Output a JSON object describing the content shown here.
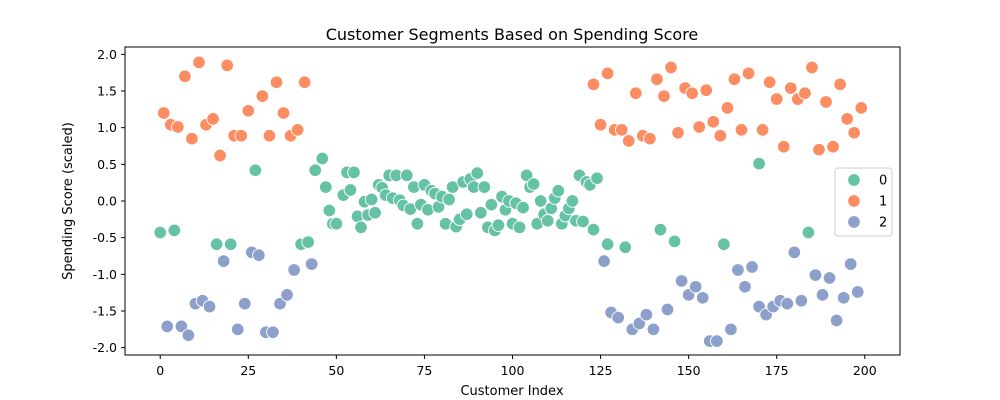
{
  "chart_data": {
    "type": "scatter",
    "title": "Customer Segments Based on Spending Score",
    "xlabel": "Customer Index",
    "ylabel": "Spending Score (scaled)",
    "xlim": [
      -10,
      210
    ],
    "ylim": [
      -2.1,
      2.1
    ],
    "xticks": [
      0,
      25,
      50,
      75,
      100,
      125,
      150,
      175,
      200
    ],
    "yticks": [
      -2.0,
      -1.5,
      -1.0,
      -0.5,
      0.0,
      0.5,
      1.0,
      1.5,
      2.0
    ],
    "grid": false,
    "legend": {
      "placement": "center-right",
      "entries": [
        "0",
        "1",
        "2"
      ]
    },
    "series": [
      {
        "name": "0",
        "color": "#66c2a5",
        "points": [
          [
            0,
            -0.43
          ],
          [
            4,
            -0.4
          ],
          [
            16,
            -0.59
          ],
          [
            20,
            -0.59
          ],
          [
            27,
            0.42
          ],
          [
            40,
            -0.59
          ],
          [
            42,
            -0.56
          ],
          [
            44,
            0.42
          ],
          [
            46,
            0.58
          ],
          [
            47,
            0.19
          ],
          [
            48,
            -0.13
          ],
          [
            49,
            -0.31
          ],
          [
            50,
            -0.31
          ],
          [
            52,
            0.08
          ],
          [
            53,
            0.39
          ],
          [
            54,
            0.15
          ],
          [
            55,
            0.39
          ],
          [
            56,
            -0.21
          ],
          [
            57,
            -0.36
          ],
          [
            58,
            -0.01
          ],
          [
            59,
            -0.19
          ],
          [
            60,
            0.02
          ],
          [
            61,
            -0.16
          ],
          [
            62,
            0.22
          ],
          [
            63,
            0.18
          ],
          [
            64,
            0.08
          ],
          [
            65,
            0.35
          ],
          [
            66,
            0.04
          ],
          [
            67,
            0.35
          ],
          [
            68,
            0.01
          ],
          [
            69,
            -0.06
          ],
          [
            70,
            0.35
          ],
          [
            71,
            -0.11
          ],
          [
            72,
            0.19
          ],
          [
            73,
            -0.31
          ],
          [
            74,
            -0.05
          ],
          [
            75,
            0.22
          ],
          [
            76,
            -0.12
          ],
          [
            77,
            0.14
          ],
          [
            78,
            0.1
          ],
          [
            79,
            -0.08
          ],
          [
            80,
            0.06
          ],
          [
            81,
            -0.31
          ],
          [
            82,
            0.02
          ],
          [
            83,
            0.19
          ],
          [
            84,
            -0.35
          ],
          [
            85,
            -0.25
          ],
          [
            86,
            0.26
          ],
          [
            87,
            -0.18
          ],
          [
            88,
            0.3
          ],
          [
            89,
            0.19
          ],
          [
            90,
            0.38
          ],
          [
            91,
            -0.16
          ],
          [
            92,
            0.19
          ],
          [
            93,
            -0.36
          ],
          [
            94,
            -0.05
          ],
          [
            95,
            -0.4
          ],
          [
            96,
            -0.33
          ],
          [
            97,
            0.06
          ],
          [
            98,
            -0.12
          ],
          [
            99,
            0.0
          ],
          [
            100,
            -0.31
          ],
          [
            101,
            -0.03
          ],
          [
            102,
            -0.36
          ],
          [
            103,
            -0.09
          ],
          [
            104,
            0.35
          ],
          [
            105,
            0.19
          ],
          [
            106,
            0.23
          ],
          [
            107,
            -0.31
          ],
          [
            108,
            0.0
          ],
          [
            109,
            -0.18
          ],
          [
            110,
            -0.27
          ],
          [
            111,
            -0.1
          ],
          [
            112,
            0.04
          ],
          [
            113,
            0.14
          ],
          [
            114,
            -0.31
          ],
          [
            115,
            -0.2
          ],
          [
            116,
            -0.1
          ],
          [
            117,
            0.0
          ],
          [
            118,
            -0.27
          ],
          [
            119,
            0.35
          ],
          [
            120,
            -0.28
          ],
          [
            121,
            0.26
          ],
          [
            122,
            0.22
          ],
          [
            123,
            -0.39
          ],
          [
            124,
            0.31
          ],
          [
            127,
            -0.59
          ],
          [
            132,
            -0.63
          ],
          [
            142,
            -0.39
          ],
          [
            146,
            -0.55
          ],
          [
            160,
            -0.59
          ],
          [
            170,
            0.51
          ],
          [
            184,
            -0.43
          ]
        ]
      },
      {
        "name": "1",
        "color": "#fc8d62",
        "points": [
          [
            1,
            1.2
          ],
          [
            3,
            1.04
          ],
          [
            5,
            1.01
          ],
          [
            7,
            1.7
          ],
          [
            9,
            0.85
          ],
          [
            11,
            1.89
          ],
          [
            13,
            1.04
          ],
          [
            15,
            1.12
          ],
          [
            17,
            0.62
          ],
          [
            19,
            1.85
          ],
          [
            21,
            0.89
          ],
          [
            23,
            0.89
          ],
          [
            25,
            1.23
          ],
          [
            29,
            1.43
          ],
          [
            31,
            0.89
          ],
          [
            33,
            1.62
          ],
          [
            35,
            1.2
          ],
          [
            37,
            0.89
          ],
          [
            39,
            0.97
          ],
          [
            41,
            1.62
          ],
          [
            123,
            1.59
          ],
          [
            125,
            1.04
          ],
          [
            127,
            1.74
          ],
          [
            129,
            0.97
          ],
          [
            131,
            0.97
          ],
          [
            133,
            0.82
          ],
          [
            135,
            1.47
          ],
          [
            137,
            0.89
          ],
          [
            139,
            0.85
          ],
          [
            141,
            1.66
          ],
          [
            143,
            1.43
          ],
          [
            145,
            1.82
          ],
          [
            147,
            0.93
          ],
          [
            149,
            1.54
          ],
          [
            151,
            1.47
          ],
          [
            153,
            1.01
          ],
          [
            155,
            1.51
          ],
          [
            157,
            1.08
          ],
          [
            159,
            0.89
          ],
          [
            161,
            1.27
          ],
          [
            163,
            1.66
          ],
          [
            165,
            0.97
          ],
          [
            167,
            1.74
          ],
          [
            171,
            0.97
          ],
          [
            173,
            1.62
          ],
          [
            175,
            1.39
          ],
          [
            177,
            0.74
          ],
          [
            179,
            1.54
          ],
          [
            181,
            1.39
          ],
          [
            183,
            1.47
          ],
          [
            185,
            1.82
          ],
          [
            187,
            0.7
          ],
          [
            189,
            1.35
          ],
          [
            191,
            0.74
          ],
          [
            193,
            1.59
          ],
          [
            195,
            1.12
          ],
          [
            197,
            0.93
          ],
          [
            199,
            1.27
          ]
        ]
      },
      {
        "name": "2",
        "color": "#8da0cb",
        "points": [
          [
            2,
            -1.71
          ],
          [
            6,
            -1.71
          ],
          [
            8,
            -1.83
          ],
          [
            10,
            -1.4
          ],
          [
            12,
            -1.36
          ],
          [
            14,
            -1.44
          ],
          [
            18,
            -0.82
          ],
          [
            22,
            -1.75
          ],
          [
            24,
            -1.4
          ],
          [
            26,
            -0.7
          ],
          [
            28,
            -0.74
          ],
          [
            30,
            -1.79
          ],
          [
            32,
            -1.79
          ],
          [
            34,
            -1.4
          ],
          [
            36,
            -1.28
          ],
          [
            38,
            -0.94
          ],
          [
            43,
            -0.86
          ],
          [
            126,
            -0.82
          ],
          [
            128,
            -1.52
          ],
          [
            130,
            -1.59
          ],
          [
            134,
            -1.75
          ],
          [
            136,
            -1.67
          ],
          [
            138,
            -1.55
          ],
          [
            140,
            -1.75
          ],
          [
            144,
            -1.48
          ],
          [
            148,
            -1.09
          ],
          [
            150,
            -1.28
          ],
          [
            152,
            -1.17
          ],
          [
            154,
            -1.32
          ],
          [
            156,
            -1.91
          ],
          [
            158,
            -1.91
          ],
          [
            162,
            -1.75
          ],
          [
            164,
            -0.94
          ],
          [
            166,
            -1.17
          ],
          [
            168,
            -0.9
          ],
          [
            170,
            -1.44
          ],
          [
            172,
            -1.55
          ],
          [
            174,
            -1.44
          ],
          [
            176,
            -1.36
          ],
          [
            178,
            -1.4
          ],
          [
            180,
            -0.7
          ],
          [
            182,
            -1.36
          ],
          [
            186,
            -1.01
          ],
          [
            188,
            -1.28
          ],
          [
            190,
            -1.05
          ],
          [
            192,
            -1.63
          ],
          [
            194,
            -1.32
          ],
          [
            196,
            -0.86
          ],
          [
            198,
            -1.24
          ]
        ]
      }
    ]
  }
}
